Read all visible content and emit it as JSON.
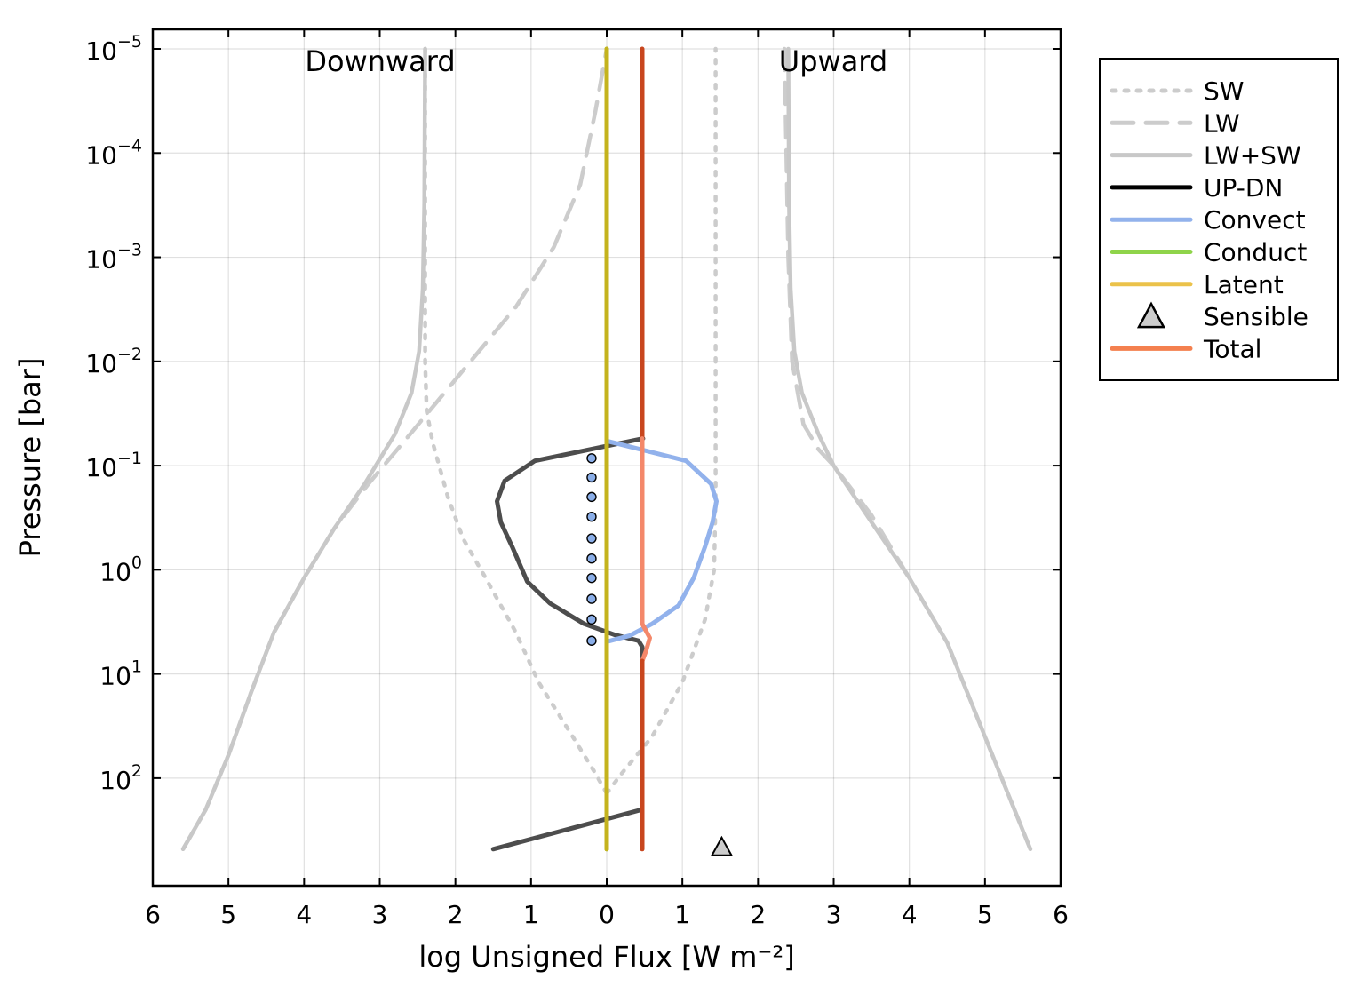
{
  "chart_data": {
    "type": "line",
    "xlabel": "log Unsigned Flux [W m⁻²]",
    "ylabel": "Pressure [bar]",
    "x_ticks": [
      "6",
      "5",
      "4",
      "3",
      "2",
      "1",
      "0",
      "1",
      "2",
      "3",
      "4",
      "5",
      "6"
    ],
    "x_tick_values": [
      -6,
      -5,
      -4,
      -3,
      -2,
      -1,
      0,
      1,
      2,
      3,
      4,
      5,
      6
    ],
    "xlim": [
      -6,
      6
    ],
    "y_scale": "log",
    "y_reversed": true,
    "ylim": [
      1e-05,
      700
    ],
    "y_ticks": [
      {
        "value": 1e-05,
        "base": "10",
        "exp": "−5"
      },
      {
        "value": 0.0001,
        "base": "10",
        "exp": "−4"
      },
      {
        "value": 0.001,
        "base": "10",
        "exp": "−3"
      },
      {
        "value": 0.01,
        "base": "10",
        "exp": "−2"
      },
      {
        "value": 0.1,
        "base": "10",
        "exp": "−1"
      },
      {
        "value": 1,
        "base": "10",
        "exp": "0"
      },
      {
        "value": 10,
        "base": "10",
        "exp": "1"
      },
      {
        "value": 100,
        "base": "10",
        "exp": "2"
      }
    ],
    "grid": true,
    "annotations": {
      "downward": "Downward",
      "upward": "Upward"
    },
    "legend_position": "outside-right",
    "series": [
      {
        "name": "SW",
        "color": "#cccccc",
        "style": "dotted",
        "x": [
          -2.4,
          -2.4,
          -2.4,
          -2.38,
          -2.3,
          -2.1,
          -1.9,
          -1.6,
          -1.2,
          -0.9,
          -0.45,
          -0.15,
          0
        ],
        "y": [
          1e-05,
          0.001,
          0.01,
          0.03,
          0.06,
          0.2,
          0.5,
          1.2,
          4,
          12,
          40,
          90,
          140
        ]
      },
      {
        "name": "SW",
        "color": "#cccccc",
        "style": "dotted",
        "x": [
          0,
          0.2,
          0.6,
          1.0,
          1.3,
          1.42,
          1.44,
          1.44,
          1.44
        ],
        "y": [
          140,
          90,
          40,
          12,
          3,
          1,
          0.2,
          0.02,
          1e-05
        ]
      },
      {
        "name": "LW",
        "color": "#cccccc",
        "style": "dashed",
        "x": [
          -5.6,
          -5.3,
          -5.0,
          -4.7,
          -4.4,
          -4.0,
          -3.6,
          -3.15,
          -2.6,
          -1.8,
          -1.2,
          -0.7,
          -0.35,
          -0.15,
          0
        ],
        "y": [
          480,
          200,
          60,
          15,
          4,
          1.2,
          0.4,
          0.15,
          0.05,
          0.01,
          0.003,
          0.0008,
          0.0002,
          4e-05,
          1e-05
        ]
      },
      {
        "name": "LW",
        "color": "#cccccc",
        "style": "dashed",
        "x": [
          2.35,
          2.4,
          2.45,
          2.6,
          2.8,
          3.0,
          3.5,
          4.0,
          4.5,
          5.0,
          5.6
        ],
        "y": [
          1e-05,
          0.001,
          0.01,
          0.04,
          0.07,
          0.1,
          0.3,
          1.2,
          5,
          40,
          480
        ]
      },
      {
        "name": "LW+SW",
        "color": "#c8c8c8",
        "style": "solid",
        "x": [
          -5.6,
          -5.3,
          -5.0,
          -4.7,
          -4.4,
          -4.0,
          -3.6,
          -3.2,
          -2.8,
          -2.58,
          -2.48,
          -2.43,
          -2.41,
          -2.4
        ],
        "y": [
          480,
          200,
          60,
          15,
          4,
          1.2,
          0.4,
          0.15,
          0.05,
          0.02,
          0.008,
          0.002,
          0.0003,
          1e-05
        ]
      },
      {
        "name": "LW+SW",
        "color": "#c8c8c8",
        "style": "solid",
        "x": [
          2.4,
          2.41,
          2.43,
          2.48,
          2.58,
          2.8,
          3.0,
          3.5,
          4.0,
          4.5,
          5.0,
          5.6
        ],
        "y": [
          1e-05,
          0.0003,
          0.002,
          0.008,
          0.02,
          0.05,
          0.1,
          0.35,
          1.2,
          5,
          40,
          480
        ]
      },
      {
        "name": "UP-DN",
        "color": "#4d4d4d",
        "style": "solid",
        "x": [
          0.48,
          -0.95,
          -1.35,
          -1.45,
          -1.4,
          -1.25,
          -1.05,
          -0.75,
          -0.3,
          0.1,
          0.42,
          0.47,
          0.47,
          0.47,
          -1.5
        ],
        "y": [
          0.055,
          0.09,
          0.14,
          0.22,
          0.35,
          0.6,
          1.3,
          2.1,
          3.3,
          4.2,
          4.8,
          5.5,
          30,
          200,
          480
        ]
      },
      {
        "name": "Convect",
        "color": "#92b2ec",
        "style": "solid",
        "x": [
          0,
          1.05,
          1.38,
          1.45,
          1.4,
          1.3,
          1.15,
          0.95,
          0.6,
          0.3,
          0
        ],
        "y": [
          0.058,
          0.09,
          0.15,
          0.22,
          0.35,
          0.6,
          1.2,
          2.2,
          3.3,
          4.3,
          4.9
        ]
      },
      {
        "name": "Conduct",
        "color": "#8fd44a",
        "style": "solid",
        "x": [
          0,
          0
        ],
        "y": [
          1e-05,
          480
        ]
      },
      {
        "name": "Latent",
        "color": "#c4b31e",
        "style": "solid",
        "x": [
          0,
          0
        ],
        "y": [
          1e-05,
          480
        ]
      },
      {
        "name": "Total",
        "color": "#c8461e",
        "style": "solid",
        "x": [
          0.47,
          0.47
        ],
        "y": [
          1e-05,
          0.055
        ]
      },
      {
        "name": "Total",
        "color": "#f4886a",
        "style": "solid",
        "x": [
          0.47,
          0.47,
          0.57,
          0.52,
          0.47
        ],
        "y": [
          0.055,
          3.3,
          4.5,
          6,
          7.5
        ]
      },
      {
        "name": "Total",
        "color": "#c8461e",
        "style": "solid",
        "x": [
          0.47,
          0.47
        ],
        "y": [
          7.5,
          480
        ]
      },
      {
        "name": "Sensible",
        "color": "#cccccc",
        "style": "marker-triangle",
        "x": [
          1.52
        ],
        "y": [
          480
        ]
      }
    ],
    "markers": {
      "color": "#8aaee8",
      "x": -0.2,
      "y": [
        0.085,
        0.13,
        0.2,
        0.31,
        0.5,
        0.78,
        1.2,
        1.9,
        3.0,
        4.8
      ]
    },
    "legend": [
      {
        "label": "SW",
        "color": "#cccccc",
        "style": "dotted"
      },
      {
        "label": "LW",
        "color": "#cccccc",
        "style": "dashed"
      },
      {
        "label": "LW+SW",
        "color": "#c8c8c8",
        "style": "solid"
      },
      {
        "label": "UP-DN",
        "color": "#000000",
        "style": "solid"
      },
      {
        "label": "Convect",
        "color": "#92b2ec",
        "style": "solid"
      },
      {
        "label": "Conduct",
        "color": "#8fd44a",
        "style": "solid"
      },
      {
        "label": "Latent",
        "color": "#ebc24a",
        "style": "solid"
      },
      {
        "label": "Sensible",
        "color": "#cccccc",
        "style": "triangle"
      },
      {
        "label": "Total",
        "color": "#f4804f",
        "style": "solid"
      }
    ]
  }
}
